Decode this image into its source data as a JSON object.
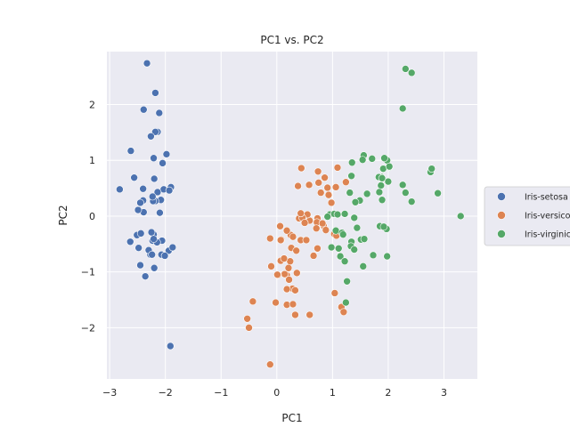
{
  "chart_data": {
    "type": "scatter",
    "title": "PC1 vs. PC2",
    "xlabel": "PC1",
    "ylabel": "PC2",
    "xlim": [
      -3.05,
      3.6
    ],
    "ylim": [
      -2.92,
      2.95
    ],
    "xticks": [
      -3,
      -2,
      -1,
      0,
      1,
      2,
      3
    ],
    "yticks": [
      -2,
      -1,
      0,
      1,
      2
    ],
    "xtick_labels": [
      "−3",
      "−2",
      "−1",
      "0",
      "1",
      "2",
      "3"
    ],
    "ytick_labels": [
      "−2",
      "−1",
      "0",
      "1",
      "2"
    ],
    "grid": true,
    "legend_position": "right-center",
    "background": "#eaeaf2",
    "series": [
      {
        "name": "Iris-setosa",
        "color": "#4c72b0",
        "x": [
          -2.27,
          -2.08,
          -2.36,
          -2.3,
          -2.39,
          -2.07,
          -2.45,
          -2.23,
          -2.33,
          -2.18,
          -2.11,
          -2.39,
          -2.14,
          -2.18,
          -2.26,
          -2.62,
          -1.98,
          -2.21,
          -2.05,
          -2.56,
          -2.2,
          -1.9,
          -2.4,
          -2.03,
          -2.14,
          -2.82,
          -2.4,
          -2.18,
          -2.45,
          -2.49,
          -2.1,
          -2.22,
          -2.23,
          -1.93,
          -2.06,
          -2.15,
          -2.51,
          -2.21,
          -2.44,
          -2.25,
          -1.94,
          -2.63,
          -2.48,
          -1.87,
          -2.24,
          -2.01,
          -2.2,
          -2.21,
          -1.91
        ],
        "y": [
          -0.69,
          0.29,
          -1.08,
          -0.61,
          0.07,
          -0.69,
          -0.88,
          -0.44,
          2.74,
          2.21,
          1.85,
          1.91,
          1.51,
          1.51,
          1.43,
          1.17,
          1.11,
          1.04,
          0.95,
          0.69,
          0.67,
          0.52,
          0.49,
          0.48,
          0.43,
          0.48,
          0.28,
          0.27,
          0.24,
          0.11,
          0.06,
          0.27,
          0.35,
          0.46,
          -0.44,
          -0.47,
          -0.34,
          -0.33,
          -0.31,
          -0.29,
          -0.62,
          -0.46,
          -0.57,
          -0.56,
          -0.69,
          -0.71,
          -0.93,
          -0.41,
          -2.33
        ]
      },
      {
        "name": "Iris-versicolor",
        "color": "#dd8452",
        "x": [
          0.44,
          1.09,
          0.74,
          0.75,
          1.06,
          0.91,
          0.79,
          0.98,
          0.73,
          0.4,
          0.59,
          0.72,
          0.84,
          1.03,
          0.55,
          0.25,
          0.46,
          0.5,
          0.82,
          0.71,
          0.18,
          0.29,
          0.08,
          0.43,
          0.53,
          1.07,
          0.88,
          0.73,
          0.66,
          0.26,
          0.35,
          0.24,
          0.07,
          0.13,
          0.21,
          0.36,
          0.18,
          0.14,
          0.28,
          0.22,
          0.18,
          0.33,
          0.18,
          -0.02,
          0.02,
          0.07,
          0.29,
          0.59,
          1.16,
          1.2,
          1.24,
          1.04,
          0.93,
          0.86,
          0.01,
          -0.43,
          -0.53,
          -0.12,
          0.33,
          -0.12,
          0.38,
          0.43,
          0.58,
          0.06,
          -0.5,
          -0.1
        ],
        "y": [
          0.86,
          0.87,
          0.8,
          0.6,
          0.52,
          0.51,
          0.42,
          0.24,
          -0.04,
          -0.04,
          -0.08,
          -0.11,
          -0.17,
          -0.32,
          0.03,
          -0.34,
          -0.03,
          -0.12,
          -0.13,
          -0.22,
          -0.26,
          -0.37,
          -0.42,
          -0.43,
          -0.43,
          -0.35,
          -0.25,
          -0.58,
          -0.71,
          -0.57,
          -0.62,
          -0.81,
          -0.8,
          -0.76,
          -0.93,
          -1.02,
          -1.06,
          -1.04,
          -1.3,
          -1.14,
          -1.31,
          -1.33,
          -1.59,
          -1.55,
          -1.06,
          -0.43,
          -1.58,
          -1.77,
          -1.63,
          -1.72,
          0.61,
          -1.38,
          0.38,
          0.69,
          -1.05,
          -1.53,
          -1.84,
          -2.66,
          -1.77,
          -0.4,
          0.54,
          0.05,
          0.56,
          -0.18,
          -2.0,
          -0.9
        ]
      },
      {
        "name": "Iris-virginica",
        "color": "#55a868",
        "x": [
          2.31,
          2.42,
          2.26,
          1.56,
          1.71,
          1.98,
          1.93,
          1.54,
          2.02,
          1.35,
          1.91,
          1.88,
          1.83,
          1.89,
          2.0,
          2.26,
          2.76,
          2.78,
          2.89,
          3.3,
          2.42,
          2.31,
          1.87,
          1.84,
          1.89,
          1.62,
          1.49,
          1.34,
          0.95,
          1.03,
          0.91,
          1.22,
          1.31,
          1.41,
          1.51,
          1.57,
          1.06,
          1.44,
          1.34,
          1.17,
          1.97,
          1.85,
          1.92,
          1.11,
          1.14,
          1.22,
          1.26,
          0.98,
          1.33,
          1.19,
          1.55,
          1.24,
          1.39,
          1.73,
          1.98,
          2.02,
          1.39,
          1.09
        ],
        "y": [
          2.64,
          2.57,
          1.93,
          1.09,
          1.03,
          1.0,
          1.04,
          1.01,
          0.88,
          0.96,
          0.85,
          0.7,
          0.7,
          0.68,
          0.62,
          0.56,
          0.79,
          0.85,
          0.41,
          0.0,
          0.26,
          0.42,
          0.55,
          0.43,
          0.29,
          0.4,
          0.28,
          0.72,
          0.03,
          0.04,
          -0.01,
          0.04,
          0.42,
          0.25,
          -0.42,
          -0.41,
          -0.26,
          -0.21,
          -0.46,
          -0.3,
          -0.23,
          -0.18,
          -0.19,
          -0.58,
          -0.72,
          -0.81,
          -1.17,
          -0.56,
          -0.54,
          -0.33,
          -0.9,
          -1.55,
          -0.6,
          -0.7,
          -0.72,
          0.89,
          -0.03,
          0.03
        ]
      }
    ]
  }
}
